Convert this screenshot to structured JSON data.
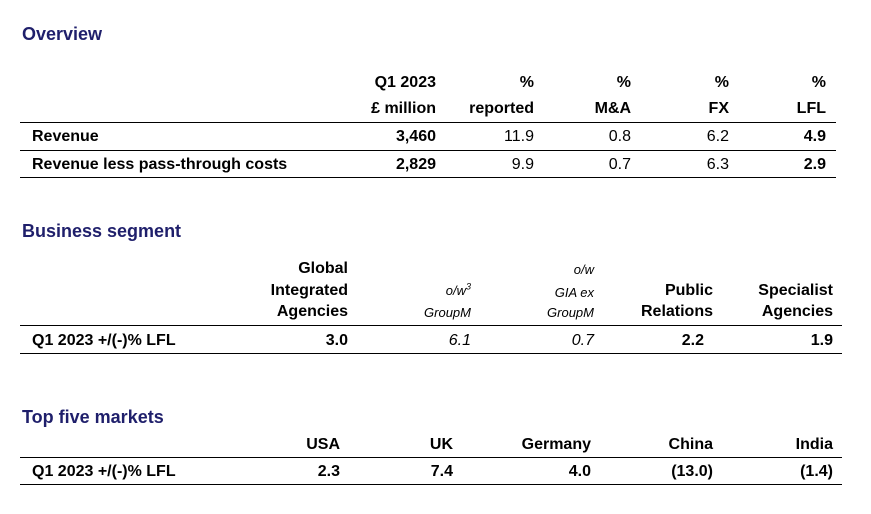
{
  "overview": {
    "title": "Overview",
    "headers": [
      {
        "line1": "Q1 2023",
        "line2": "£ million"
      },
      {
        "line1": "%",
        "line2": "reported"
      },
      {
        "line1": "%",
        "line2": "M&A"
      },
      {
        "line1": "%",
        "line2": "FX"
      },
      {
        "line1": "%",
        "line2": "LFL"
      }
    ],
    "rows": [
      {
        "label": "Revenue",
        "values": [
          "3,460",
          "11.9",
          "0.8",
          "6.2",
          "4.9"
        ]
      },
      {
        "label": "Revenue less pass-through costs",
        "values": [
          "2,829",
          "9.9",
          "0.7",
          "6.3",
          "2.9"
        ]
      }
    ]
  },
  "business_segment": {
    "title": "Business segment",
    "headers": [
      {
        "lines": [
          "Global",
          "Integrated",
          "Agencies"
        ]
      },
      {
        "line1": "o/w",
        "sup": "3",
        "line2": "GroupM"
      },
      {
        "line0": "o/w",
        "line1": "GIA ex",
        "line2": "GroupM"
      },
      {
        "lines": [
          "Public",
          "Relations"
        ]
      },
      {
        "lines": [
          "Specialist",
          "Agencies"
        ]
      }
    ],
    "row": {
      "label": "Q1 2023 +/(-)% LFL",
      "values": [
        "3.0",
        "6.1",
        "0.7",
        "2.2",
        "1.9"
      ]
    }
  },
  "top_markets": {
    "title": "Top five markets",
    "headers": [
      "USA",
      "UK",
      "Germany",
      "China",
      "India"
    ],
    "row": {
      "label": "Q1 2023 +/(-)% LFL",
      "values": [
        "2.3",
        "7.4",
        "4.0",
        "(13.0)",
        "(1.4)"
      ]
    }
  }
}
